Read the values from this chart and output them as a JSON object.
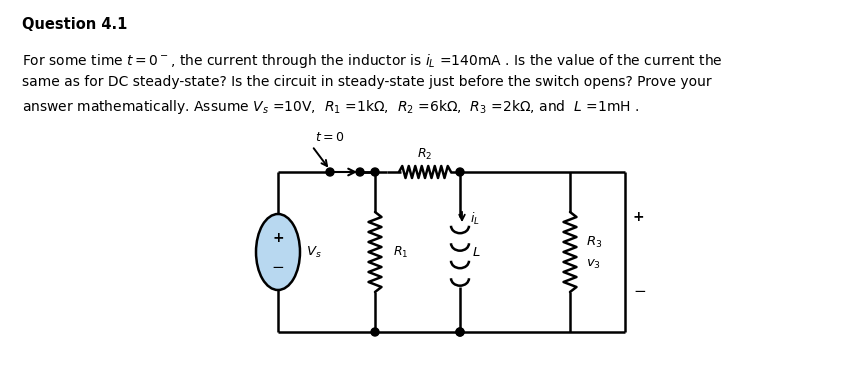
{
  "bg_color": "#ffffff",
  "title": "Question 4.1",
  "line1": "For some time $t=0^-$, the current through the inductor is $i_L$ =140mA . Is the value of the current the",
  "line2": "same as for DC steady-state? Is the circuit in steady-state just before the switch opens? Prove your",
  "line3": "answer mathematically. Assume $V_s$ =10V,  $R_1$ =1kΩ,  $R_2$ =6kΩ,  $R_3$ =2kΩ, and  $L$ =1mH .",
  "lw": 1.8,
  "line_color": "#000000",
  "vs_fill": "#b8d8f0"
}
